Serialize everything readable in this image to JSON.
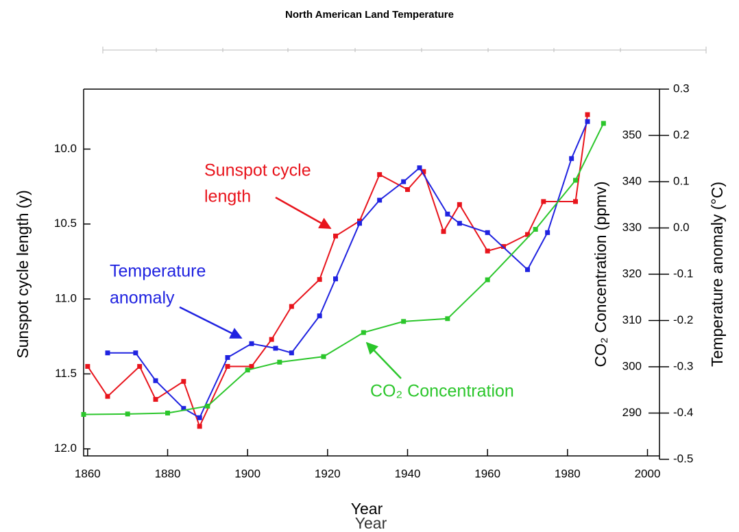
{
  "chart_data": {
    "type": "line",
    "title": "North American Land Temperature",
    "xlabels": [
      "Year",
      "Year"
    ],
    "ylabel": "Sunspot cycle length (y)",
    "y2label": "CO₂ Concentration (ppmv)",
    "y3label": "Temperature anomaly (°C)",
    "xlim": [
      1859,
      2003
    ],
    "xticks": [
      1860,
      1880,
      1900,
      1920,
      1940,
      1960,
      1980,
      2000
    ],
    "ylim": [
      9.6,
      12.07
    ],
    "y_inverted": true,
    "yticks": [
      {
        "value": 10,
        "label": "10.0"
      },
      {
        "value": 10.5,
        "label": "10.5"
      },
      {
        "value": 11,
        "label": "11.0"
      },
      {
        "value": 11.5,
        "label": "11.5"
      },
      {
        "value": 12,
        "label": "12.0"
      }
    ],
    "y2lim": [
      280,
      360
    ],
    "y2ticks": [
      290,
      300,
      310,
      320,
      330,
      340,
      350
    ],
    "y3lim": [
      -0.5,
      0.3
    ],
    "y3ticks": [
      0.3,
      0.2,
      0.1,
      {
        "value": 0,
        "label": "0.0"
      },
      -0.1,
      -0.2,
      -0.3,
      -0.4,
      -0.5
    ],
    "series": [
      {
        "color": "#e8141c",
        "axis": "y",
        "x": [
          1860,
          1865,
          1873,
          1877,
          1884,
          1888,
          1895,
          1901,
          1906,
          1911,
          1918,
          1922,
          1928,
          1933,
          1940,
          1944,
          1949,
          1953,
          1960,
          1964,
          1970,
          1974,
          1982,
          1985
        ],
        "values": [
          11.45,
          11.65,
          11.45,
          11.67,
          11.55,
          11.85,
          11.45,
          11.45,
          11.27,
          11.05,
          10.87,
          10.58,
          10.48,
          10.17,
          10.27,
          10.15,
          10.55,
          10.37,
          10.68,
          10.65,
          10.57,
          10.35,
          10.35,
          9.77
        ]
      },
      {
        "color": "#1f22e0",
        "axis": "y3",
        "x": [
          1865,
          1872,
          1877,
          1884,
          1888,
          1895,
          1901,
          1907,
          1911,
          1918,
          1922,
          1928,
          1933,
          1939,
          1943,
          1950,
          1953,
          1960,
          1970,
          1975,
          1981,
          1985
        ],
        "values": [
          -0.27,
          -0.27,
          -0.33,
          -0.39,
          -0.41,
          -0.28,
          -0.25,
          -0.26,
          -0.27,
          -0.19,
          -0.11,
          0.01,
          0.06,
          0.1,
          0.13,
          0.03,
          0.01,
          -0.01,
          -0.09,
          -0.01,
          0.15,
          0.23
        ]
      },
      {
        "color": "#2bc62b",
        "axis": "y2",
        "x": [
          1859,
          1870,
          1880,
          1890,
          1900,
          1908,
          1919,
          1929,
          1939,
          1950,
          1960,
          1972,
          1982,
          1989
        ],
        "values": [
          289.7,
          289.8,
          290.0,
          291.5,
          299.3,
          301.0,
          302.2,
          307.4,
          309.8,
          310.4,
          318.8,
          329.7,
          340.3,
          352.6
        ]
      }
    ],
    "annotations": [
      {
        "lines": [
          "Sunspot cycle",
          "length"
        ],
        "color": "#e8141c"
      },
      {
        "lines": [
          "Temperature",
          "anomaly"
        ],
        "color": "#1f22e0"
      },
      {
        "lines": [
          "CO₂ Concentration"
        ],
        "color": "#2bc62b"
      }
    ]
  }
}
